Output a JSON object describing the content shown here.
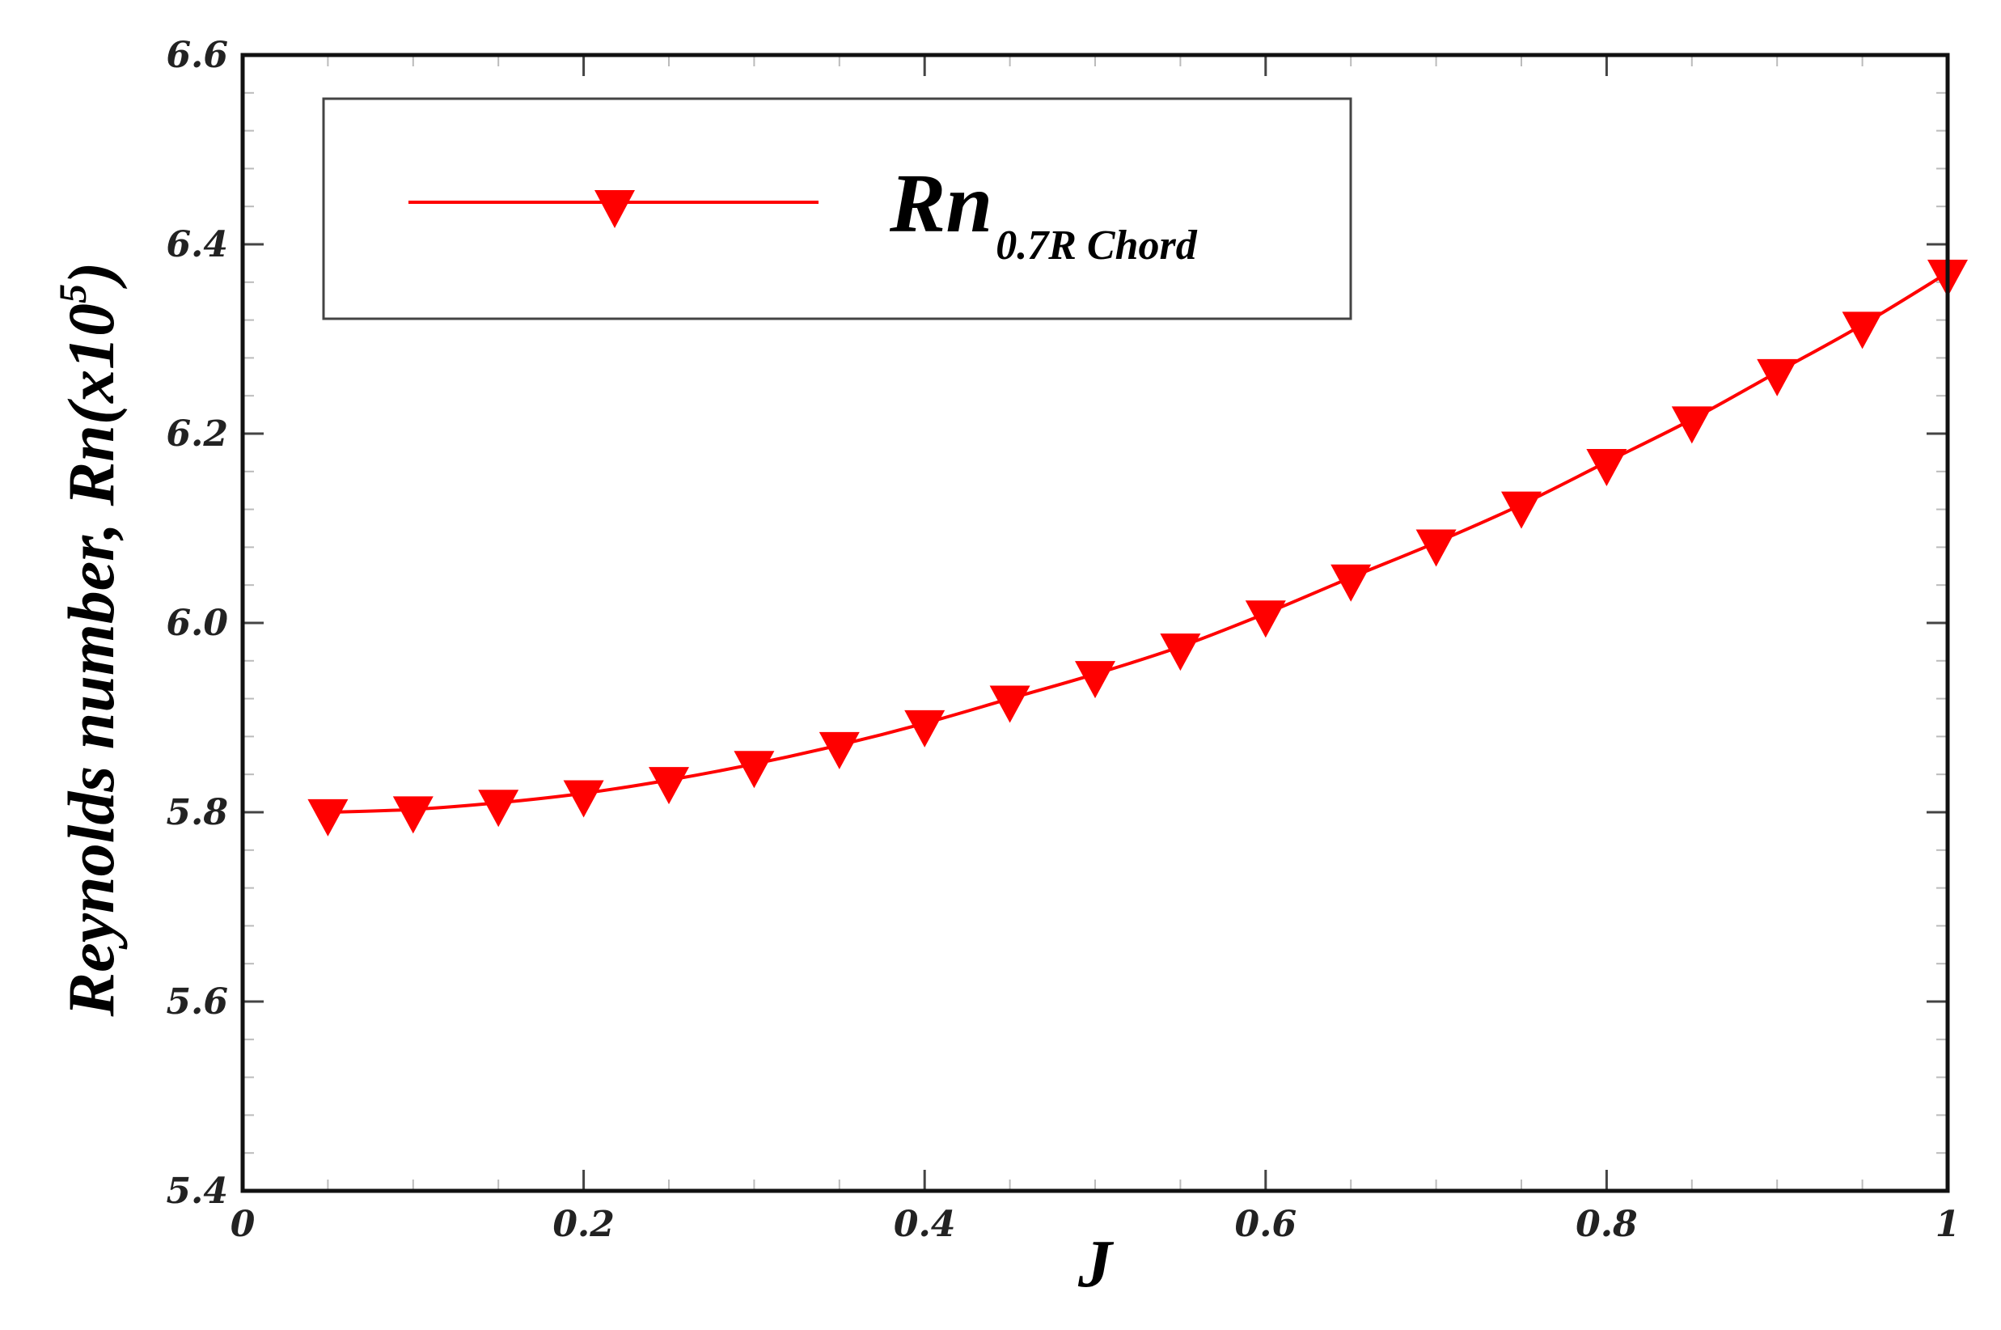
{
  "chart_data": {
    "type": "line",
    "title": "",
    "xlabel": "J",
    "ylabel": "Reynolds number, Rn(x10",
    "ylabel_sup": "5",
    "ylabel_end": ")",
    "xlim": [
      0,
      1
    ],
    "ylim": [
      5.4,
      6.6
    ],
    "x_ticks": [
      {
        "value": 0,
        "label": "0"
      },
      {
        "value": 0.2,
        "label": "0.2"
      },
      {
        "value": 0.4,
        "label": "0.4"
      },
      {
        "value": 0.6,
        "label": "0.6"
      },
      {
        "value": 0.8,
        "label": "0.8"
      },
      {
        "value": 1,
        "label": "1"
      }
    ],
    "y_ticks": [
      {
        "value": 5.4,
        "label": "5.4"
      },
      {
        "value": 5.6,
        "label": "5.6"
      },
      {
        "value": 5.8,
        "label": "5.8"
      },
      {
        "value": 6.0,
        "label": "6.0"
      },
      {
        "value": 6.2,
        "label": "6.2"
      },
      {
        "value": 6.4,
        "label": "6.4"
      },
      {
        "value": 6.6,
        "label": "6.6"
      }
    ],
    "grid": false,
    "legend": {
      "position": "top-left",
      "label_main": "Rn",
      "label_sub": "0.7R Chord"
    },
    "series": [
      {
        "marker": "triangle-down",
        "color": "#ff0000",
        "x": [
          0.05,
          0.1,
          0.15,
          0.2,
          0.25,
          0.3,
          0.35,
          0.4,
          0.45,
          0.5,
          0.55,
          0.6,
          0.65,
          0.7,
          0.75,
          0.8,
          0.85,
          0.9,
          0.95,
          1.0
        ],
        "y": [
          5.8,
          5.803,
          5.81,
          5.82,
          5.834,
          5.851,
          5.871,
          5.894,
          5.92,
          5.946,
          5.975,
          6.01,
          6.048,
          6.085,
          6.125,
          6.17,
          6.215,
          6.265,
          6.315,
          6.37
        ]
      }
    ]
  }
}
